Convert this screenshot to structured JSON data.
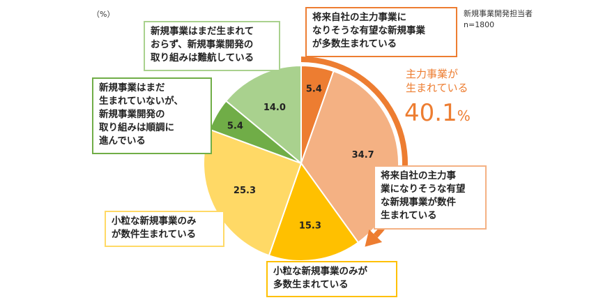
{
  "chart_data": {
    "type": "pie",
    "unit_label": "（%）",
    "respondents": [
      "新規事業開発担当者",
      "n=1800"
    ],
    "slices": [
      {
        "label": "将来自社の主力事業になりそうな有望な新規事業が多数生まれている",
        "value": 5.4,
        "color": "#ED7D31"
      },
      {
        "label": "将来自社の主力事業になりそうな有望な新規事業が数件生まれている",
        "value": 34.7,
        "color": "#F4B183"
      },
      {
        "label": "小粒な新規事業のみが多数生まれている",
        "value": 15.3,
        "color": "#FFC000"
      },
      {
        "label": "小粒な新規事業のみが数件生まれている",
        "value": 25.3,
        "color": "#FFD966"
      },
      {
        "label": "新規事業はまだ生まれていないが、新規事業開発の取り組みは順調に進んでいる",
        "value": 5.4,
        "color": "#70AD47"
      },
      {
        "label": "新規事業はまだ生まれておらず、新規事業開発の取り組みは難航している",
        "value": 14.0,
        "color": "#A9D18E"
      }
    ],
    "value_labels": [
      "5.4",
      "34.7",
      "15.3",
      "25.3",
      "5.4",
      "14.0"
    ],
    "box_texts": [
      "将来自社の主力事業に\nなりそうな有望な新規事業\nが多数生まれている",
      "将来自社の主力事\n業になりそうな有望\nな新規事業が数件\n生まれている",
      "小粒な新規事業のみが\n多数生まれている",
      "小粒な新規事業のみ\nが数件生まれている",
      "新規事業はまだ\n生まれていないが、\n新規事業開発の\n取り組みは順調に\n進んでいる",
      "新規事業はまだ生まれて\nおらず、新規事業開発の\n取り組みは難航している"
    ],
    "highlight": {
      "label": "主力事業が\n生まれている",
      "value": "40.1",
      "unit": "%",
      "color": "#ED7D31"
    }
  }
}
